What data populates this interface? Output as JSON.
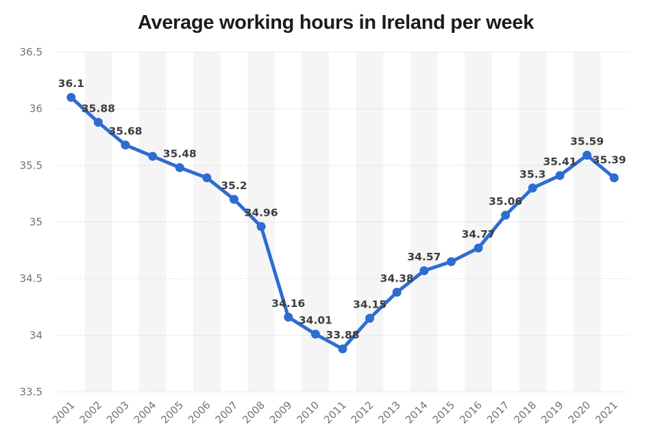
{
  "chart_data": {
    "type": "line",
    "title": "Average working hours in Ireland per week",
    "categories": [
      "2001",
      "2002",
      "2003",
      "2004",
      "2005",
      "2006",
      "2007",
      "2008",
      "2009",
      "2010",
      "2011",
      "2012",
      "2013",
      "2014",
      "2015",
      "2016",
      "2017",
      "2018",
      "2019",
      "2020",
      "2021"
    ],
    "values": [
      36.1,
      35.88,
      35.68,
      35.58,
      35.48,
      35.39,
      35.2,
      34.96,
      34.16,
      34.01,
      33.88,
      34.15,
      34.38,
      34.57,
      34.65,
      34.77,
      35.06,
      35.3,
      35.41,
      35.59,
      35.39
    ],
    "point_labels": [
      "36.1",
      "35.88",
      "35.68",
      null,
      "35.48",
      null,
      "35.2",
      "34.96",
      "34.16",
      "34.01",
      "33.88",
      "34.15",
      "34.38",
      "34.57",
      null,
      "34.77",
      "35.06",
      "35.3",
      "35.41",
      "35.59",
      "35.39"
    ],
    "unlabeled_point_indices": [
      3,
      5,
      14
    ],
    "xlabel": "",
    "ylabel": "",
    "ylim": [
      33.5,
      36.5
    ],
    "yticks": [
      "36.5",
      "36",
      "35.5",
      "35",
      "34.5",
      "34",
      "33.5"
    ],
    "grid": "horizontal dotted lines",
    "legend": "none",
    "plot_bands": "alternating light vertical stripes centered on even years",
    "colors": {
      "line": "#2e6cd1",
      "marker": "#2e6cd1",
      "point_label": "#3d3d3d",
      "axis_label": "#737373",
      "grid_line": "#c9c9c9",
      "band_fill": "#f5f5f5",
      "title": "#1b1b1b",
      "background": "#ffffff"
    }
  }
}
